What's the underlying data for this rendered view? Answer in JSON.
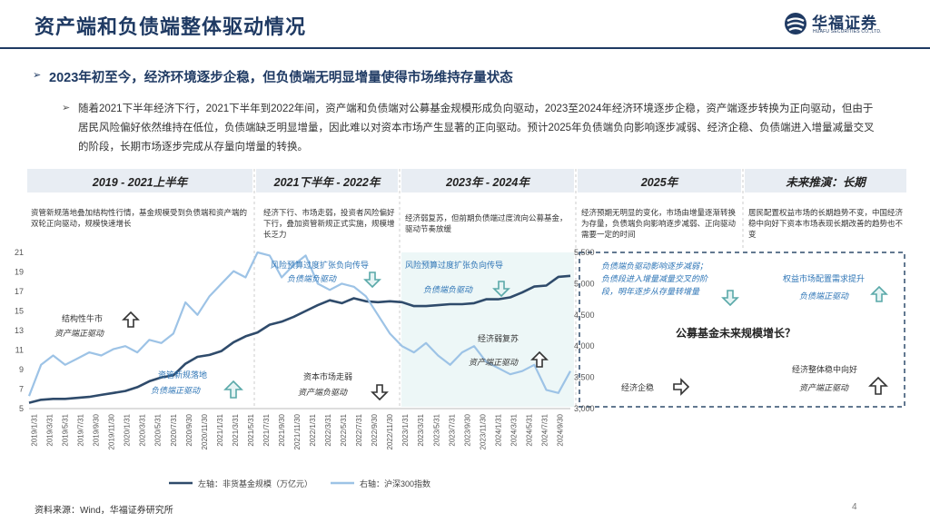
{
  "page": {
    "title": "资产端和负债端整体驱动情况",
    "logo_cn": "华福证券",
    "logo_en": "HUAFU SECURITIES CO.,LTD.",
    "headline": "2023年初至今，经济环境逐步企稳，但负债端无明显增量使得市场维持存量状态",
    "paragraph": "随着2021下半年经济下行，2021下半年到2022年间，资产端和负债端对公募基金规模形成负向驱动，2023至2024年经济环境逐步企稳，资产端逐步转换为正向驱动，但由于居民风险偏好依然维持在低位，负债端缺乏明显增量，因此难以对资本市场产生显著的正向驱动。预计2025年负债端负向影响逐步减弱、经济企稳、负债端进入增量减量交叉的阶段，长期市场逐步完成从存量向增量的转换。",
    "source": "资料来源：Wind，华福证券研究所",
    "page_number": "4"
  },
  "periods": [
    {
      "label": "2019 - 2021上半年",
      "desc": "资管新规落地叠加结构性行情，基金规模受到负债端和资产端的双轮正向驱动，规模快速增长"
    },
    {
      "label": "2021下半年 - 2022年",
      "desc": "经济下行、市场走弱，投资者风险偏好下行，叠加资管新规正式实施，规模增长乏力"
    },
    {
      "label": "2023年 - 2024年",
      "desc": "经济弱复苏，但前期负债端过度流向公募基金，驱动节奏放缓"
    },
    {
      "label": "2025年",
      "desc": "经济预期无明显的变化，市场由增量逐渐转换为存量，负债端负向影响逐步减弱、正向驱动需要一定的时间"
    },
    {
      "label": "未来推演：长期",
      "desc": "居民配置权益市场的长期趋势不变，中国经济稳中向好下资本市场表现长期改善的趋势也不变"
    }
  ],
  "annotations": {
    "a1": "结构性牛市",
    "a1b": "资产端正驱动",
    "a2": "资管新规落地",
    "a2b": "负债端正驱动",
    "a3": "风险预算过度扩张负向传导",
    "a3b": "负债端负驱动",
    "a4": "资本市场走弱",
    "a4b": "资产端负驱动",
    "a5": "风险预算过度扩张负向传导",
    "a5b": "负债端负驱动",
    "a6": "经济弱复苏",
    "a6b": "资产端正驱动",
    "b1": "负债端负驱动影响逐步减弱；",
    "b2": "负债段进入增量减量交叉的阶",
    "b3": "段，明年逐步从存量转增量",
    "b4": "公募基金未来规模增长？",
    "b5": "权益市场配置需求提升",
    "b6": "负债端正驱动",
    "b7": "经济企稳",
    "b8": "经济整体稳中向好",
    "b9": "资产端正驱动"
  },
  "colors": {
    "navy": "#1f3a63",
    "fund_line": "#2f4b6b",
    "csi_line": "#9dc3e6",
    "band_bg": "#e8edf3",
    "teal_bg": "#e6f4f4",
    "annot_blue": "#2e75b6"
  },
  "chart_data": {
    "type": "line",
    "x_ticks": [
      "2019/1/31",
      "2019/3/31",
      "2019/5/31",
      "2019/7/31",
      "2019/9/30",
      "2019/11/30",
      "2020/1/31",
      "2020/3/31",
      "2020/5/31",
      "2020/7/31",
      "2020/9/30",
      "2020/11/30",
      "2021/1/31",
      "2021/3/31",
      "2021/5/31",
      "2021/7/31",
      "2021/9/30",
      "2021/11/30",
      "2022/1/31",
      "2022/3/31",
      "2022/5/31",
      "2022/7/31",
      "2022/9/30",
      "2022/11/30",
      "2023/1/31",
      "2023/3/31",
      "2023/5/31",
      "2023/7/31",
      "2023/9/30",
      "2023/11/30",
      "2024/1/31",
      "2024/3/31",
      "2024/5/31",
      "2024/7/31",
      "2024/9/30"
    ],
    "y_left": {
      "ticks": [
        "5",
        "7",
        "9",
        "11",
        "13",
        "15",
        "17",
        "19",
        "21"
      ],
      "min": 5,
      "max": 21
    },
    "y_right": {
      "ticks": [
        "3,000",
        "3,500",
        "4,000",
        "4,500",
        "5,000",
        "5,500"
      ],
      "min": 3000,
      "max": 5500
    },
    "series": [
      {
        "name": "左轴：非货基金规模（万亿元）",
        "axis": "left",
        "values": [
          5.6,
          5.9,
          6.0,
          6.0,
          6.1,
          6.2,
          6.4,
          6.6,
          6.8,
          7.2,
          7.8,
          8.2,
          8.4,
          9.6,
          10.3,
          10.5,
          10.9,
          11.8,
          12.4,
          12.8,
          13.6,
          13.9,
          14.4,
          15.0,
          15.6,
          16.1,
          15.8,
          16.3,
          16.0,
          15.9,
          16.0,
          15.9,
          15.5,
          15.5,
          15.6,
          15.7,
          15.7,
          15.8,
          16.2,
          16.2,
          16.4,
          16.9,
          17.5,
          17.6,
          18.5,
          18.6
        ]
      },
      {
        "name": "右轴：沪深300指数",
        "axis": "right",
        "values": [
          3200,
          3700,
          3850,
          3700,
          3800,
          3900,
          3850,
          3950,
          4000,
          3900,
          4100,
          4050,
          4200,
          4700,
          4500,
          4800,
          5000,
          5200,
          5100,
          5500,
          5450,
          5100,
          5300,
          5450,
          5000,
          4900,
          5000,
          4950,
          4800,
          4500,
          4200,
          4000,
          3900,
          4050,
          3850,
          3700,
          3900,
          4000,
          3750,
          3650,
          3550,
          3600,
          3700,
          3300,
          3250,
          3600
        ]
      }
    ]
  }
}
